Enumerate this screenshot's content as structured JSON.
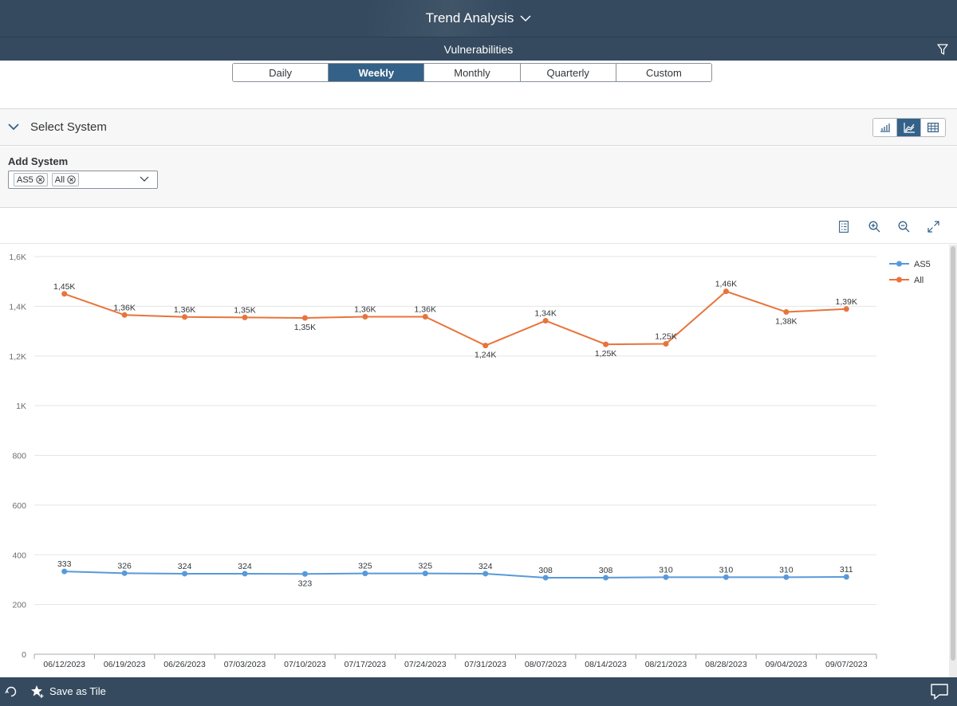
{
  "shell": {
    "title": "Trend Analysis"
  },
  "subheader": {
    "title": "Vulnerabilities"
  },
  "periods": [
    {
      "label": "Daily",
      "active": false
    },
    {
      "label": "Weekly",
      "active": true
    },
    {
      "label": "Monthly",
      "active": false
    },
    {
      "label": "Quarterly",
      "active": false
    },
    {
      "label": "Custom",
      "active": false
    }
  ],
  "select_system": {
    "label": "Select System"
  },
  "add_system": {
    "label": "Add System",
    "tokens": [
      "AS5",
      "All"
    ]
  },
  "footer": {
    "save_label": "Save as Tile"
  },
  "colors": {
    "shell": "#354a5f",
    "accent": "#346187",
    "as5": "#5899da",
    "all": "#e8743b"
  },
  "chart_data": {
    "type": "line",
    "categories": [
      "06/12/2023",
      "06/19/2023",
      "06/26/2023",
      "07/03/2023",
      "07/10/2023",
      "07/17/2023",
      "07/24/2023",
      "07/31/2023",
      "08/07/2023",
      "08/14/2023",
      "08/21/2023",
      "08/28/2023",
      "09/04/2023",
      "09/07/2023"
    ],
    "series": [
      {
        "name": "AS5",
        "color": "#5899da",
        "values": [
          333,
          326,
          324,
          324,
          323,
          325,
          325,
          324,
          308,
          308,
          310,
          310,
          310,
          311
        ],
        "labels": [
          "333",
          "326",
          "324",
          "324",
          "323",
          "325",
          "325",
          "324",
          "308",
          "308",
          "310",
          "310",
          "310",
          "311"
        ],
        "label_pos": [
          "above",
          "above",
          "above",
          "above",
          "below",
          "above",
          "above",
          "above",
          "above",
          "above",
          "above",
          "above",
          "above",
          "above"
        ]
      },
      {
        "name": "All",
        "color": "#e8743b",
        "values": [
          1450,
          1365,
          1357,
          1355,
          1353,
          1358,
          1358,
          1242,
          1342,
          1247,
          1249,
          1460,
          1377,
          1389
        ],
        "labels": [
          "1,45K",
          "1,36K",
          "1,36K",
          "1,35K",
          "1,35K",
          "1,36K",
          "1,36K",
          "1,24K",
          "1,34K",
          "1,25K",
          "1,25K",
          "1,46K",
          "1,38K",
          "1,39K"
        ],
        "label_pos": [
          "above",
          "above",
          "above",
          "above",
          "below",
          "above",
          "above",
          "below",
          "above",
          "below",
          "above",
          "above",
          "below",
          "above"
        ]
      }
    ],
    "yticks": [
      0,
      200,
      400,
      600,
      800,
      1000,
      1200,
      1400,
      1600
    ],
    "ytick_labels": [
      "0",
      "200",
      "400",
      "600",
      "800",
      "1K",
      "1,2K",
      "1,4K",
      "1,6K"
    ],
    "ylim": [
      0,
      1600
    ],
    "legend": "top-right",
    "grid": true
  }
}
